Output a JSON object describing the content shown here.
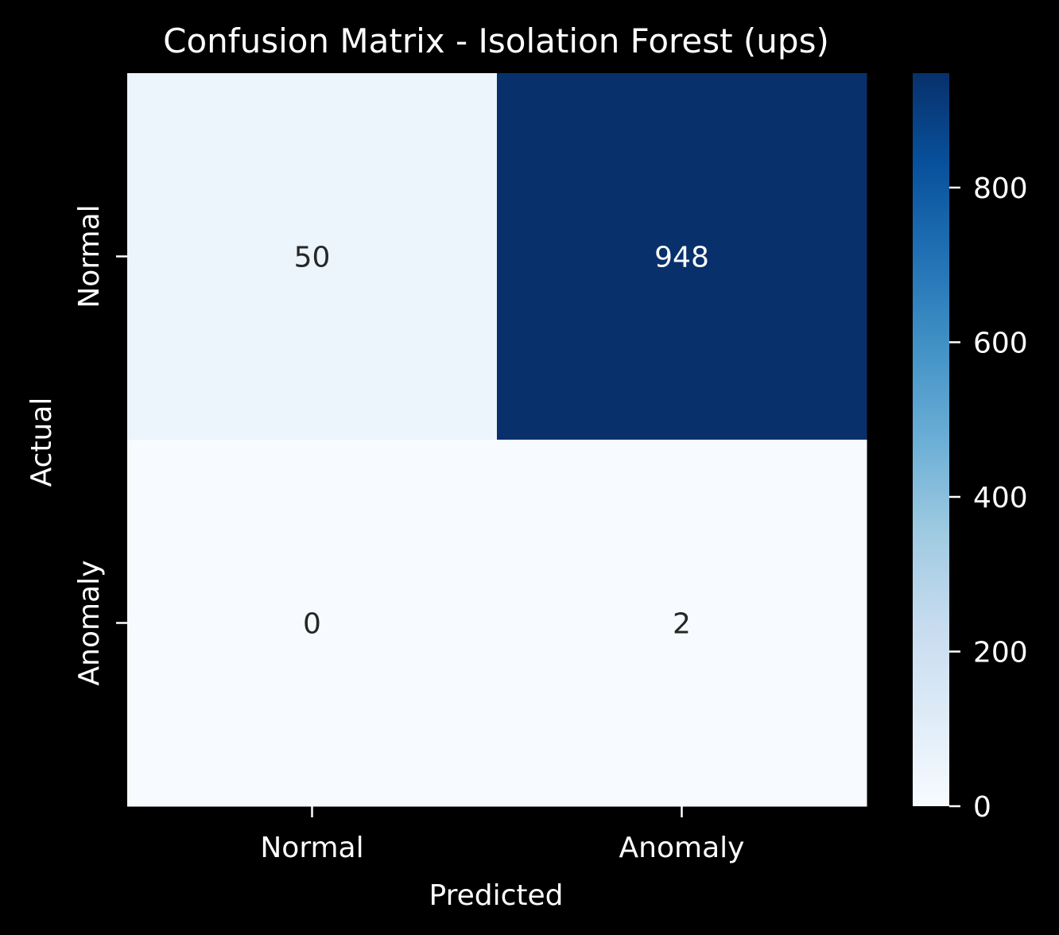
{
  "chart_data": {
    "type": "heatmap",
    "title": "Confusion Matrix - Isolation Forest (ups)",
    "xlabel": "Predicted",
    "ylabel": "Actual",
    "x_categories": [
      "Normal",
      "Anomaly"
    ],
    "y_categories": [
      "Normal",
      "Anomaly"
    ],
    "values": [
      [
        50,
        948
      ],
      [
        0,
        2
      ]
    ],
    "colormap": "Blues",
    "colorbar": {
      "range": [
        0,
        948
      ],
      "ticks": [
        0,
        200,
        400,
        600,
        800
      ],
      "tick_labels": [
        "0",
        "200",
        "400",
        "600",
        "800"
      ]
    },
    "grid": false,
    "legend": "colorbar-right"
  },
  "colors": {
    "background": "#000000",
    "foreground": "#ffffff",
    "dark_annotation": "#262626",
    "light_annotation": "#ffffff",
    "cmap_stops": [
      "#f7fbff",
      "#deebf7",
      "#c6dbef",
      "#9ecae1",
      "#6baed6",
      "#4292c6",
      "#2171b5",
      "#08519c",
      "#08306b"
    ]
  }
}
